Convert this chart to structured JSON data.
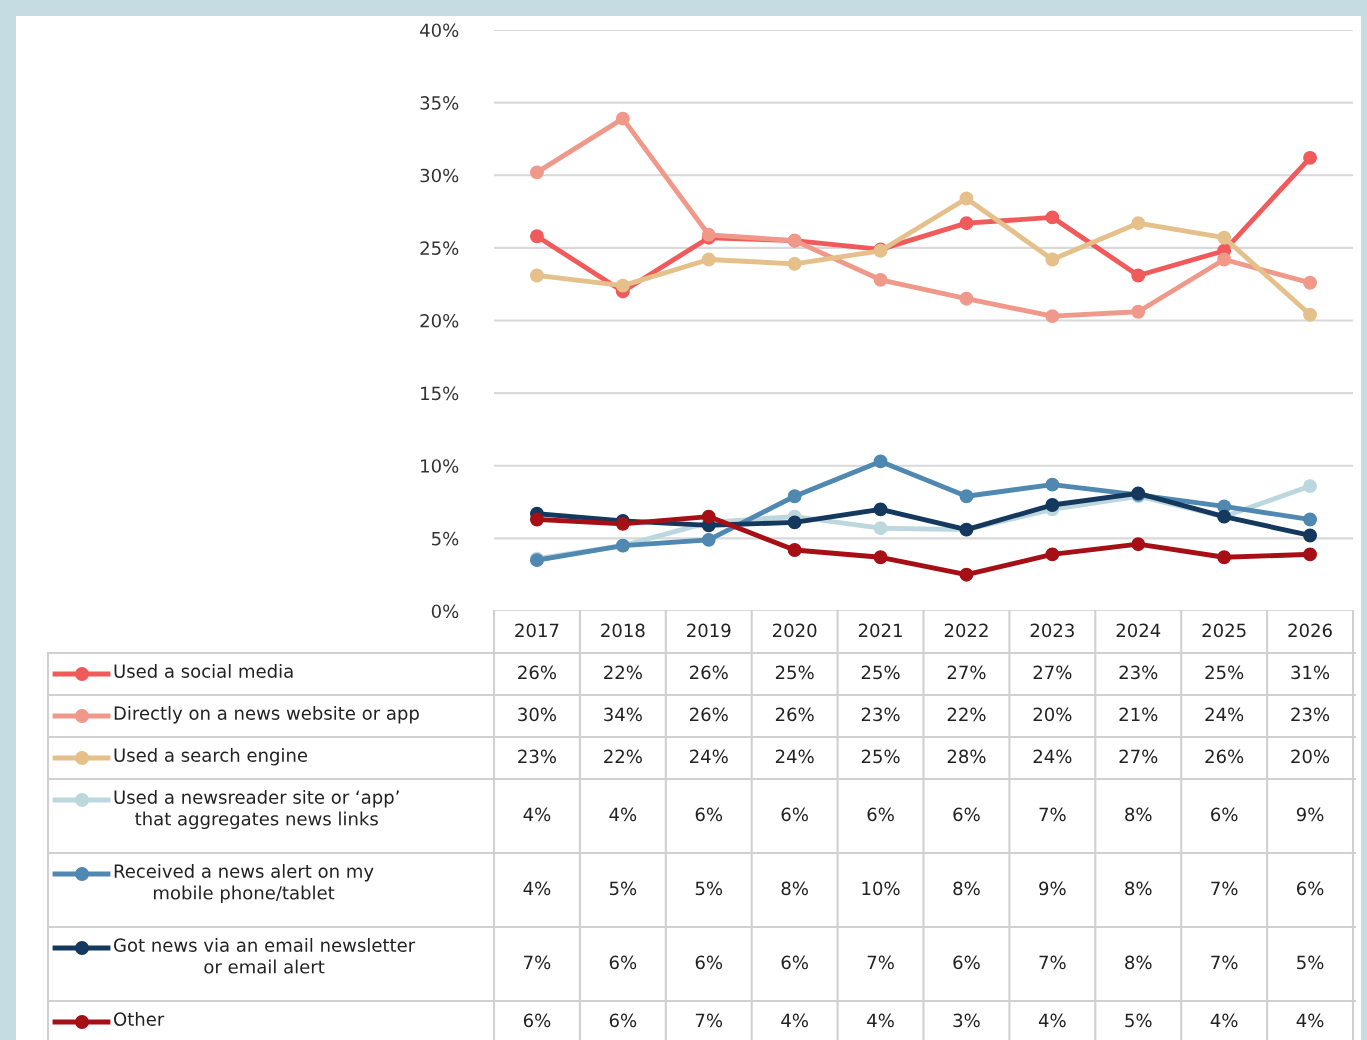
{
  "chart_data": {
    "type": "line",
    "categories": [
      "2017",
      "2018",
      "2019",
      "2020",
      "2021",
      "2022",
      "2023",
      "2024",
      "2025",
      "2026"
    ],
    "series": [
      {
        "name": "Used a social media",
        "color": "#f05a5a",
        "values": [
          25.8,
          22.0,
          25.7,
          25.5,
          24.9,
          26.7,
          27.1,
          23.1,
          24.8,
          31.2
        ],
        "value_labels": [
          "26%",
          "22%",
          "26%",
          "25%",
          "25%",
          "27%",
          "27%",
          "23%",
          "25%",
          "31%"
        ]
      },
      {
        "name": "Directly on a news website or app",
        "color": "#f0998a",
        "values": [
          30.2,
          33.9,
          25.9,
          25.5,
          22.8,
          21.5,
          20.3,
          20.6,
          24.2,
          22.6
        ],
        "value_labels": [
          "30%",
          "34%",
          "26%",
          "26%",
          "23%",
          "22%",
          "20%",
          "21%",
          "24%",
          "23%"
        ]
      },
      {
        "name": "Used a search engine",
        "color": "#e5c08a",
        "values": [
          23.1,
          22.4,
          24.2,
          23.9,
          24.8,
          28.4,
          24.2,
          26.7,
          25.7,
          20.4
        ],
        "value_labels": [
          "23%",
          "22%",
          "24%",
          "24%",
          "25%",
          "28%",
          "24%",
          "27%",
          "26%",
          "20%"
        ]
      },
      {
        "name": "Used a newsreader site or ‘app’\nthat aggregates news links",
        "color": "#bcd8de",
        "values": [
          3.6,
          4.5,
          6.1,
          6.5,
          5.7,
          5.6,
          7.0,
          7.9,
          6.5,
          8.6
        ],
        "value_labels": [
          "4%",
          "4%",
          "6%",
          "6%",
          "6%",
          "6%",
          "7%",
          "8%",
          "6%",
          "9%"
        ]
      },
      {
        "name": "Received a news alert on my\nmobile phone/tablet",
        "color": "#4f88b0",
        "values": [
          3.5,
          4.5,
          4.9,
          7.9,
          10.3,
          7.9,
          8.7,
          8.0,
          7.2,
          6.3
        ],
        "value_labels": [
          "4%",
          "5%",
          "5%",
          "8%",
          "10%",
          "8%",
          "9%",
          "8%",
          "7%",
          "6%"
        ]
      },
      {
        "name": "Got news via an email newsletter\nor email alert",
        "color": "#14385e",
        "values": [
          6.7,
          6.2,
          5.9,
          6.1,
          7.0,
          5.6,
          7.3,
          8.1,
          6.5,
          5.2
        ],
        "value_labels": [
          "7%",
          "6%",
          "6%",
          "6%",
          "7%",
          "6%",
          "7%",
          "8%",
          "7%",
          "5%"
        ]
      },
      {
        "name": "Other",
        "color": "#a50f15",
        "values": [
          6.3,
          6.0,
          6.5,
          4.2,
          3.7,
          2.5,
          3.9,
          4.6,
          3.7,
          3.9
        ],
        "value_labels": [
          "6%",
          "6%",
          "7%",
          "4%",
          "4%",
          "3%",
          "4%",
          "5%",
          "4%",
          "4%"
        ]
      }
    ],
    "ylim": [
      0,
      40
    ],
    "yticks": [
      {
        "value": 0,
        "label": "0%"
      },
      {
        "value": 5,
        "label": "5%"
      },
      {
        "value": 10,
        "label": "10%"
      },
      {
        "value": 15,
        "label": "15%"
      },
      {
        "value": 20,
        "label": "20%"
      },
      {
        "value": 25,
        "label": "25%"
      },
      {
        "value": 30,
        "label": "30%"
      },
      {
        "value": 35,
        "label": "35%"
      },
      {
        "value": 40,
        "label": "40%"
      }
    ],
    "grid": "y",
    "marker": "circle",
    "line_style": "solid",
    "legend": "bottom"
  }
}
